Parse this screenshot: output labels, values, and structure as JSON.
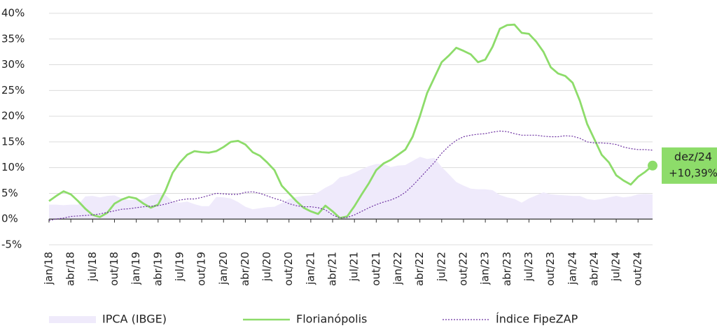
{
  "chart_data": {
    "type": "line",
    "categories": [
      "jan/18",
      null,
      null,
      "abr/18",
      null,
      null,
      "jul/18",
      null,
      null,
      "out/18",
      null,
      null,
      "jan/19",
      null,
      null,
      "abr/19",
      null,
      null,
      "jul/19",
      null,
      null,
      "out/19",
      null,
      null,
      "jan/20",
      null,
      null,
      "abr/20",
      null,
      null,
      "jul/20",
      null,
      null,
      "out/20",
      null,
      null,
      "jan/21",
      null,
      null,
      "abr/21",
      null,
      null,
      "jul/21",
      null,
      null,
      "out/21",
      null,
      null,
      "jan/22",
      null,
      null,
      "abr/22",
      null,
      null,
      "jul/22",
      null,
      null,
      "out/22",
      null,
      null,
      "jan/23",
      null,
      null,
      "abr/23",
      null,
      null,
      "jul/23",
      null,
      null,
      "out/23",
      null,
      null,
      "jan/24",
      null,
      null,
      "abr/24",
      null,
      null,
      "jul/24",
      null,
      null,
      "out/24",
      null,
      "dez/24"
    ],
    "series": [
      {
        "name": "IPCA (IBGE)",
        "style": "area",
        "color": "#efeafb",
        "values": [
          2.8,
          2.8,
          2.7,
          2.8,
          2.8,
          4.4,
          4.5,
          4.2,
          4.5,
          4.6,
          4.0,
          3.7,
          3.8,
          3.9,
          4.6,
          4.9,
          4.7,
          3.4,
          3.2,
          3.4,
          2.9,
          2.5,
          2.5,
          4.3,
          4.2,
          4.0,
          3.3,
          2.4,
          1.9,
          2.1,
          2.3,
          2.4,
          3.1,
          3.9,
          4.3,
          4.5,
          4.6,
          5.2,
          6.1,
          6.8,
          8.1,
          8.4,
          9.0,
          9.7,
          10.3,
          10.7,
          10.7,
          10.1,
          10.4,
          10.5,
          11.3,
          12.1,
          11.7,
          11.9,
          10.1,
          8.7,
          7.2,
          6.5,
          5.9,
          5.8,
          5.8,
          5.6,
          4.7,
          4.2,
          3.9,
          3.2,
          4.0,
          4.6,
          5.2,
          4.8,
          4.7,
          4.6,
          4.5,
          4.5,
          3.9,
          3.7,
          3.9,
          4.2,
          4.5,
          4.2,
          4.4,
          4.8,
          4.9,
          4.8
        ]
      },
      {
        "name": "Florianópolis",
        "style": "solid",
        "color": "#8ddc6a",
        "values": [
          3.5,
          4.5,
          5.4,
          4.8,
          3.5,
          2.0,
          0.8,
          0.4,
          1.2,
          3.0,
          3.8,
          4.3,
          4.0,
          3.0,
          2.2,
          2.8,
          5.5,
          9.0,
          11.0,
          12.5,
          13.2,
          13.0,
          12.9,
          13.2,
          14.0,
          15.0,
          15.2,
          14.5,
          13.0,
          12.3,
          11.0,
          9.5,
          6.5,
          5.0,
          3.5,
          2.2,
          1.5,
          1.0,
          2.6,
          1.5,
          0.2,
          0.5,
          2.5,
          4.8,
          7.0,
          9.5,
          10.8,
          11.5,
          12.5,
          13.5,
          16.0,
          20.0,
          24.5,
          27.5,
          30.5,
          31.8,
          33.3,
          32.7,
          32.0,
          30.5,
          31.0,
          33.5,
          37.0,
          37.7,
          37.8,
          36.2,
          36.0,
          34.5,
          32.5,
          29.5,
          28.3,
          27.8,
          26.5,
          23.0,
          18.5,
          15.5,
          12.5,
          11.0,
          8.5,
          7.5,
          6.7,
          8.2,
          9.2,
          10.39
        ],
        "value_labels": [
          null,
          null,
          null,
          null,
          null,
          null,
          null,
          null,
          null,
          null,
          null,
          null,
          null,
          null,
          null,
          null,
          null,
          null,
          null,
          null,
          null,
          null,
          null,
          null,
          null,
          null,
          null,
          null,
          null,
          null,
          null,
          null,
          null,
          null,
          null,
          null,
          null,
          null,
          null,
          null,
          null,
          null,
          null,
          null,
          null,
          null,
          null,
          null,
          null,
          null,
          null,
          null,
          null,
          null,
          null,
          null,
          null,
          null,
          null,
          null,
          null,
          null,
          null,
          null,
          null,
          null,
          null,
          null,
          null,
          null,
          null,
          null,
          null,
          null,
          null,
          null,
          null,
          null,
          null,
          null,
          null,
          null,
          null,
          "+10,39%"
        ]
      },
      {
        "name": "Índice FipeZAP",
        "style": "dotted",
        "color": "#6b2fa0",
        "values": [
          -0.3,
          0.0,
          0.2,
          0.5,
          0.6,
          0.7,
          0.8,
          1.0,
          1.3,
          1.6,
          1.9,
          2.0,
          2.2,
          2.4,
          2.5,
          2.6,
          2.9,
          3.3,
          3.7,
          3.9,
          3.9,
          4.2,
          4.6,
          5.0,
          4.9,
          4.8,
          4.8,
          5.2,
          5.3,
          5.0,
          4.5,
          4.0,
          3.6,
          3.0,
          2.6,
          2.4,
          2.4,
          2.2,
          1.8,
          0.8,
          0.2,
          0.3,
          0.8,
          1.5,
          2.2,
          2.8,
          3.3,
          3.7,
          4.3,
          5.2,
          6.5,
          8.0,
          9.5,
          11.0,
          12.8,
          14.2,
          15.3,
          16.0,
          16.3,
          16.5,
          16.6,
          16.9,
          17.1,
          17.0,
          16.6,
          16.3,
          16.3,
          16.3,
          16.1,
          16.0,
          16.0,
          16.2,
          16.1,
          15.7,
          15.0,
          14.8,
          14.8,
          14.7,
          14.5,
          14.0,
          13.7,
          13.5,
          13.5,
          13.4
        ]
      }
    ],
    "ylim": [
      -5,
      40
    ],
    "yticks": [
      {
        "value": -5,
        "label": "-5%"
      },
      {
        "value": 0,
        "label": "0%"
      },
      {
        "value": 5,
        "label": "5%"
      },
      {
        "value": 10,
        "label": "10%"
      },
      {
        "value": 15,
        "label": "15%"
      },
      {
        "value": 20,
        "label": "20%"
      },
      {
        "value": 25,
        "label": "25%"
      },
      {
        "value": 30,
        "label": "30%"
      },
      {
        "value": 35,
        "label": "35%"
      },
      {
        "value": 40,
        "label": "40%"
      }
    ],
    "grid": true
  }
}
